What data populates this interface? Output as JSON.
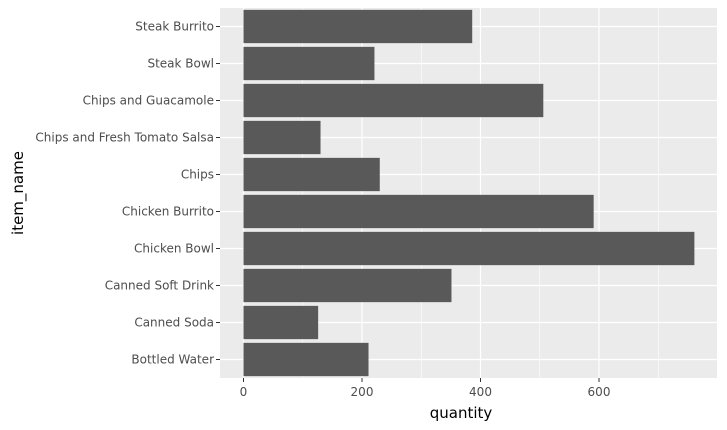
{
  "chart_data": {
    "type": "bar",
    "orientation": "horizontal",
    "categories": [
      "Bottled Water",
      "Canned Soda",
      "Canned Soft Drink",
      "Chicken Bowl",
      "Chicken Burrito",
      "Chips",
      "Chips and Fresh Tomato Salsa",
      "Chips and Guacamole",
      "Steak Bowl",
      "Steak Burrito"
    ],
    "values": [
      211,
      126,
      351,
      761,
      591,
      230,
      130,
      506,
      221,
      386
    ],
    "xlabel": "quantity",
    "ylabel": "item_name",
    "xlim": [
      -40,
      800
    ],
    "xticks": [
      0,
      200,
      400,
      600
    ],
    "grid": true,
    "colors": {
      "bar": "#595959",
      "panel": "#ebebeb",
      "grid_major": "#ffffff",
      "background": "#ffffff"
    }
  }
}
